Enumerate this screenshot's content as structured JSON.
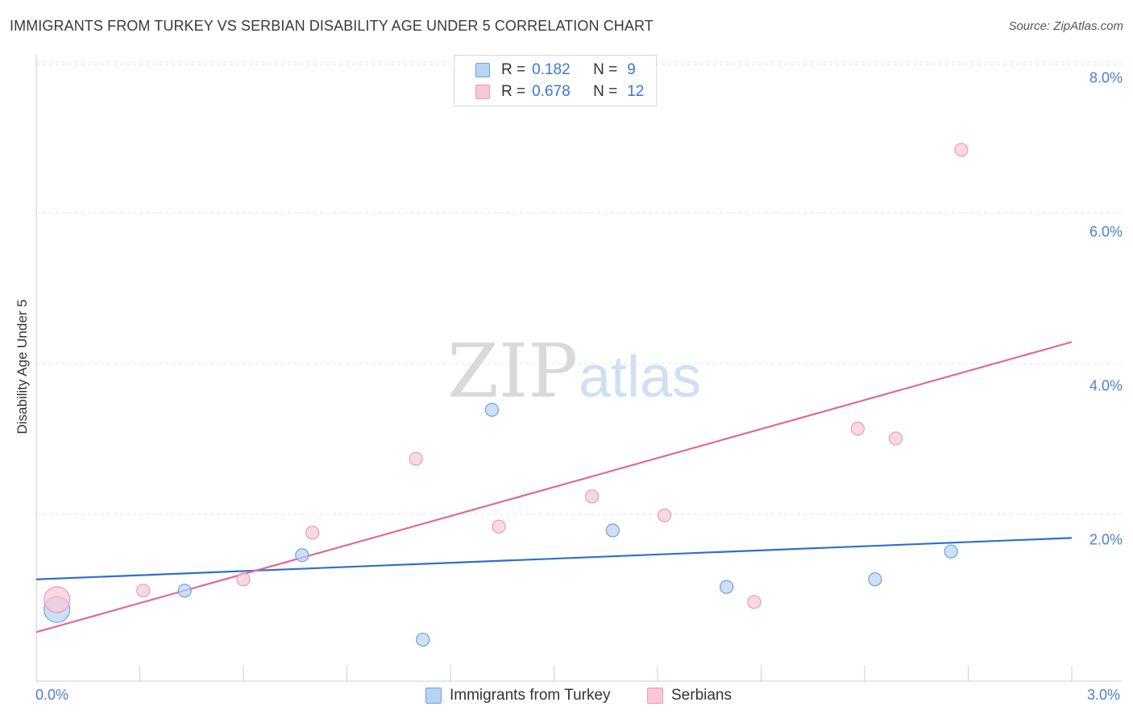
{
  "title": "IMMIGRANTS FROM TURKEY VS SERBIAN DISABILITY AGE UNDER 5 CORRELATION CHART",
  "source": "Source: ZipAtlas.com",
  "watermark": {
    "zip": "ZIP",
    "atlas": "atlas"
  },
  "legend": {
    "rows": [
      {
        "r_label": "R =",
        "r_value": "0.182",
        "n_label": "N =",
        "n_value": "9"
      },
      {
        "r_label": "R =",
        "r_value": "0.678",
        "n_label": "N =",
        "n_value": "12"
      }
    ]
  },
  "bottom_legend": [
    "Immigrants from Turkey",
    "Serbians"
  ],
  "colors": {
    "turkey_fill": "#b8d3f5",
    "turkey_stroke": "#6f9fd8",
    "turkey_line": "#2f6fca",
    "serbian_fill": "#f9c8d6",
    "serbian_stroke": "#e89ab2",
    "serbian_line": "#e06a94",
    "axis_text": "#4a7fd0"
  },
  "chart_data": {
    "type": "scatter",
    "title": "IMMIGRANTS FROM TURKEY VS SERBIAN DISABILITY AGE UNDER 5 CORRELATION CHART",
    "xlabel": "",
    "ylabel": "Disability Age Under 5",
    "xlim": [
      0,
      3.0
    ],
    "ylim": [
      0,
      8.0
    ],
    "x_tick_labels": [
      "0.0%",
      "3.0%"
    ],
    "y_ticks": [
      2.0,
      4.0,
      6.0,
      8.0
    ],
    "y_tick_labels": [
      "2.0%",
      "4.0%",
      "6.0%",
      "8.0%"
    ],
    "grid": true,
    "legend_position": "top-center",
    "series": [
      {
        "name": "Immigrants from Turkey",
        "points": [
          {
            "x": 0.06,
            "y": 0.95,
            "size": "large"
          },
          {
            "x": 0.43,
            "y": 1.2
          },
          {
            "x": 0.77,
            "y": 1.67
          },
          {
            "x": 1.12,
            "y": 0.55
          },
          {
            "x": 1.32,
            "y": 3.6
          },
          {
            "x": 1.67,
            "y": 2.0
          },
          {
            "x": 2.0,
            "y": 1.25
          },
          {
            "x": 2.43,
            "y": 1.35
          },
          {
            "x": 2.65,
            "y": 1.72
          }
        ],
        "trendline": {
          "x": [
            0,
            3.0
          ],
          "y": [
            1.35,
            1.9
          ]
        }
      },
      {
        "name": "Serbians",
        "points": [
          {
            "x": 0.06,
            "y": 1.08,
            "size": "large"
          },
          {
            "x": 0.31,
            "y": 1.2
          },
          {
            "x": 0.6,
            "y": 1.35
          },
          {
            "x": 0.8,
            "y": 1.97
          },
          {
            "x": 1.1,
            "y": 2.95
          },
          {
            "x": 1.34,
            "y": 2.05
          },
          {
            "x": 1.61,
            "y": 2.45
          },
          {
            "x": 1.82,
            "y": 2.2
          },
          {
            "x": 2.08,
            "y": 1.05
          },
          {
            "x": 2.38,
            "y": 3.35
          },
          {
            "x": 2.49,
            "y": 3.22
          },
          {
            "x": 2.68,
            "y": 7.05
          }
        ],
        "trendline": {
          "x": [
            0,
            3.0
          ],
          "y": [
            0.65,
            4.5
          ]
        }
      }
    ]
  }
}
